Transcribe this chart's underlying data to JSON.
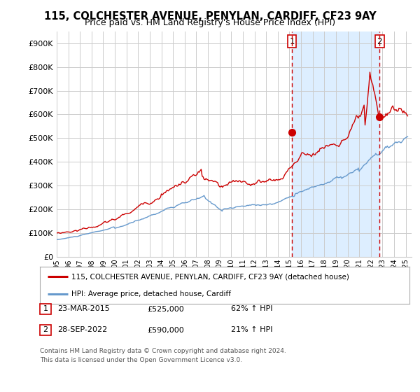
{
  "title": "115, COLCHESTER AVENUE, PENYLAN, CARDIFF, CF23 9AY",
  "subtitle": "Price paid vs. HM Land Registry's House Price Index (HPI)",
  "ylabel_ticks": [
    "£0",
    "£100K",
    "£200K",
    "£300K",
    "£400K",
    "£500K",
    "£600K",
    "£700K",
    "£800K",
    "£900K"
  ],
  "ytick_values": [
    0,
    100000,
    200000,
    300000,
    400000,
    500000,
    600000,
    700000,
    800000,
    900000
  ],
  "ylim": [
    0,
    950000
  ],
  "xlim_start": 1995.0,
  "xlim_end": 2025.5,
  "legend_line1": "115, COLCHESTER AVENUE, PENYLAN, CARDIFF, CF23 9AY (detached house)",
  "legend_line2": "HPI: Average price, detached house, Cardiff",
  "sale1_date": "23-MAR-2015",
  "sale1_price": "£525,000",
  "sale1_hpi": "62% ↑ HPI",
  "sale2_date": "28-SEP-2022",
  "sale2_price": "£590,000",
  "sale2_hpi": "21% ↑ HPI",
  "copyright_text": "Contains HM Land Registry data © Crown copyright and database right 2024.\nThis data is licensed under the Open Government Licence v3.0.",
  "line_color_red": "#cc0000",
  "line_color_blue": "#6699cc",
  "shade_color": "#ddeeff",
  "vline_color": "#cc0000",
  "background_color": "#ffffff",
  "grid_color": "#cccccc",
  "title_fontsize": 10.5,
  "subtitle_fontsize": 9,
  "sale1_x": 2015.21,
  "sale1_y": 525000,
  "sale2_x": 2022.75,
  "sale2_y": 590000
}
